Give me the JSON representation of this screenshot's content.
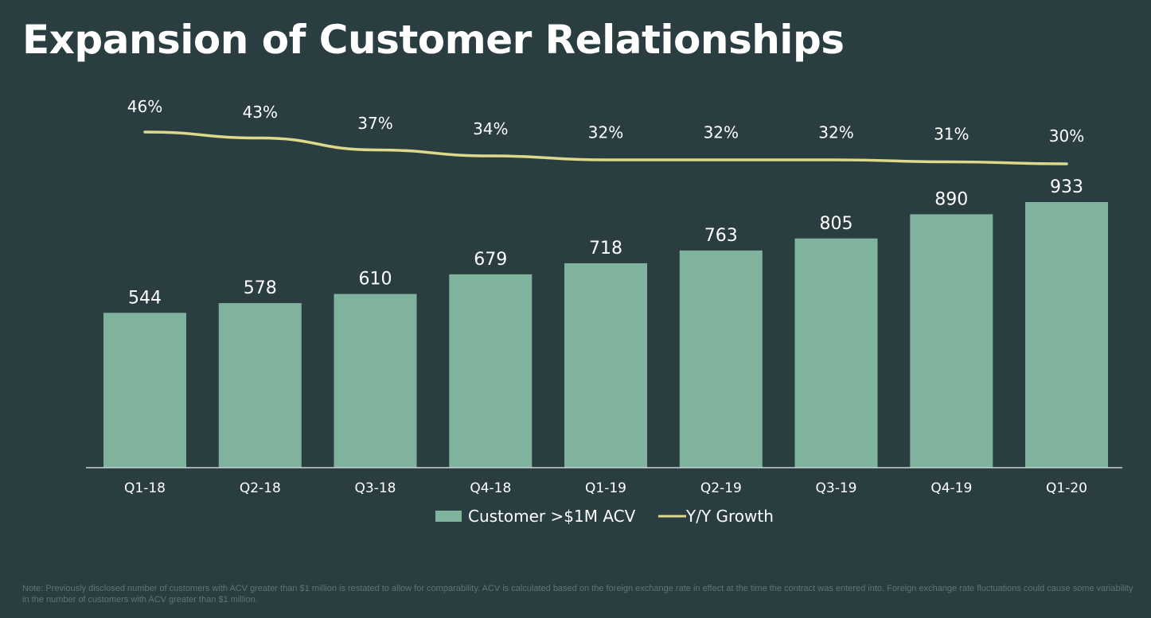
{
  "title": "Expansion of Customer Relationships",
  "footnote": "Note: Previously disclosed number of customers with ACV greater than $1 million is restated to allow for comparability. ACV is calculated based on the foreign exchange rate in effect at the time the contract was entered into. Foreign exchange rate fluctuations could cause some variability in the number of customers with ACV greater than $1 million.",
  "colors": {
    "background": "#2a3e41",
    "bar": "#7fb39e",
    "line": "#ddd98a",
    "text": "#ffffff",
    "axis": "#c9d2d0",
    "note": "#5f7477"
  },
  "chart_data": {
    "type": "bar",
    "categories": [
      "Q1-18",
      "Q2-18",
      "Q3-18",
      "Q4-18",
      "Q1-19",
      "Q2-19",
      "Q3-19",
      "Q4-19",
      "Q1-20"
    ],
    "series": [
      {
        "name": "Customer >$1M ACV",
        "type": "bar",
        "values": [
          544,
          578,
          610,
          679,
          718,
          763,
          805,
          890,
          933
        ],
        "labels": [
          "544",
          "578",
          "610",
          "679",
          "718",
          "763",
          "805",
          "890",
          "933"
        ]
      },
      {
        "name": "Y/Y Growth",
        "type": "line",
        "values": [
          46,
          43,
          37,
          34,
          32,
          32,
          32,
          31,
          30
        ],
        "labels": [
          "46%",
          "43%",
          "37%",
          "34%",
          "32%",
          "32%",
          "32%",
          "31%",
          "30%"
        ]
      }
    ],
    "legend": {
      "position": "bottom-center",
      "items": [
        "Customer >$1M ACV",
        "Y/Y Growth"
      ]
    },
    "grid": false,
    "value_labels": true
  }
}
